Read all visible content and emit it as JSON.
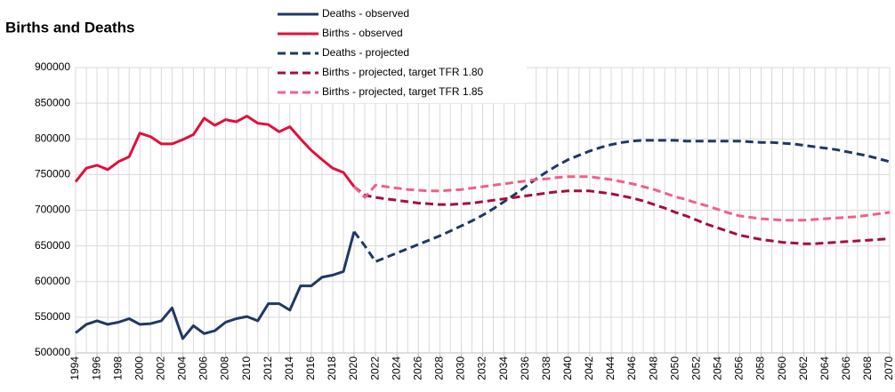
{
  "chart_data": {
    "type": "line",
    "title": "Births and Deaths",
    "x": [
      1994,
      1995,
      1996,
      1997,
      1998,
      1999,
      2000,
      2001,
      2002,
      2003,
      2004,
      2005,
      2006,
      2007,
      2008,
      2009,
      2010,
      2011,
      2012,
      2013,
      2014,
      2015,
      2016,
      2017,
      2018,
      2019,
      2020,
      2021,
      2022,
      2023,
      2024,
      2025,
      2026,
      2027,
      2028,
      2029,
      2030,
      2031,
      2032,
      2033,
      2034,
      2035,
      2036,
      2037,
      2038,
      2039,
      2040,
      2041,
      2042,
      2043,
      2044,
      2045,
      2046,
      2047,
      2048,
      2049,
      2050,
      2051,
      2052,
      2053,
      2054,
      2055,
      2056,
      2057,
      2058,
      2059,
      2060,
      2061,
      2062,
      2063,
      2064,
      2065,
      2066,
      2067,
      2068,
      2069,
      2070
    ],
    "xlim": [
      1994,
      2070
    ],
    "xticks": [
      1994,
      1996,
      1998,
      2000,
      2002,
      2004,
      2006,
      2008,
      2010,
      2012,
      2014,
      2016,
      2018,
      2020,
      2022,
      2024,
      2026,
      2028,
      2030,
      2032,
      2034,
      2036,
      2038,
      2040,
      2042,
      2044,
      2046,
      2048,
      2050,
      2052,
      2054,
      2056,
      2058,
      2060,
      2062,
      2064,
      2066,
      2068,
      2070
    ],
    "ylim": [
      500000,
      900000
    ],
    "yticks": [
      500000,
      550000,
      600000,
      650000,
      700000,
      750000,
      800000,
      850000,
      900000
    ],
    "grid": true,
    "series": [
      {
        "name": "Deaths - observed",
        "color": "#203864",
        "style": "solid",
        "values": [
          528000,
          540000,
          545000,
          540000,
          543000,
          548000,
          540000,
          541000,
          545000,
          563000,
          520000,
          538000,
          527000,
          531000,
          543000,
          548000,
          551000,
          545000,
          569000,
          569000,
          560000,
          594000,
          594000,
          606000,
          609000,
          614000,
          670000,
          null,
          null,
          null,
          null,
          null,
          null,
          null,
          null,
          null,
          null,
          null,
          null,
          null,
          null,
          null,
          null,
          null,
          null,
          null,
          null,
          null,
          null,
          null,
          null,
          null,
          null,
          null,
          null,
          null,
          null,
          null,
          null,
          null,
          null,
          null,
          null,
          null,
          null,
          null,
          null,
          null,
          null,
          null,
          null,
          null,
          null,
          null,
          null,
          null,
          null
        ]
      },
      {
        "name": "Births - observed",
        "color": "#e0103c",
        "style": "solid",
        "values": [
          740000,
          759000,
          763000,
          757000,
          768000,
          775000,
          808000,
          803000,
          793000,
          793000,
          799000,
          806000,
          829000,
          819000,
          827000,
          824000,
          832000,
          822000,
          820000,
          810000,
          817000,
          800000,
          784000,
          771000,
          759000,
          753000,
          733000,
          null,
          null,
          null,
          null,
          null,
          null,
          null,
          null,
          null,
          null,
          null,
          null,
          null,
          null,
          null,
          null,
          null,
          null,
          null,
          null,
          null,
          null,
          null,
          null,
          null,
          null,
          null,
          null,
          null,
          null,
          null,
          null,
          null,
          null,
          null,
          null,
          null,
          null,
          null,
          null,
          null,
          null,
          null,
          null,
          null,
          null,
          null,
          null,
          null,
          null
        ]
      },
      {
        "name": "Deaths - projected",
        "color": "#203864",
        "style": "dashed",
        "values": [
          null,
          null,
          null,
          null,
          null,
          null,
          null,
          null,
          null,
          null,
          null,
          null,
          null,
          null,
          null,
          null,
          null,
          null,
          null,
          null,
          null,
          null,
          null,
          null,
          null,
          null,
          670000,
          650000,
          628000,
          634000,
          640000,
          646000,
          652000,
          658000,
          664000,
          671000,
          678000,
          685000,
          693000,
          702000,
          712000,
          722000,
          733000,
          744000,
          754000,
          763000,
          771000,
          777000,
          783000,
          788000,
          792000,
          795000,
          797000,
          798000,
          798000,
          798000,
          798000,
          797000,
          797000,
          797000,
          797000,
          797000,
          797000,
          796000,
          795000,
          795000,
          794000,
          793000,
          791000,
          789000,
          787000,
          785000,
          782000,
          779000,
          776000,
          772000,
          768000
        ]
      },
      {
        "name": "Births - projected, target TFR 1.80",
        "color": "#a50f3c",
        "style": "dashed",
        "values": [
          null,
          null,
          null,
          null,
          null,
          null,
          null,
          null,
          null,
          null,
          null,
          null,
          null,
          null,
          null,
          null,
          null,
          null,
          null,
          null,
          null,
          null,
          null,
          null,
          null,
          null,
          733000,
          721000,
          718000,
          716000,
          714000,
          712000,
          710000,
          709000,
          708000,
          708000,
          709000,
          710000,
          712000,
          714000,
          716000,
          718000,
          720000,
          722000,
          724000,
          726000,
          727000,
          727000,
          727000,
          725000,
          723000,
          720000,
          717000,
          713000,
          708000,
          703000,
          697000,
          692000,
          686000,
          680000,
          675000,
          670000,
          665000,
          662000,
          659000,
          657000,
          655000,
          654000,
          653000,
          653000,
          654000,
          655000,
          656000,
          657000,
          658000,
          659000,
          660000
        ]
      },
      {
        "name": "Births - projected, target TFR 1.85",
        "color": "#f06088",
        "style": "dashed",
        "values": [
          null,
          null,
          null,
          null,
          null,
          null,
          null,
          null,
          null,
          null,
          null,
          null,
          null,
          null,
          null,
          null,
          null,
          null,
          null,
          null,
          null,
          null,
          null,
          null,
          null,
          null,
          733000,
          718000,
          735000,
          733000,
          731000,
          729000,
          728000,
          727000,
          727000,
          728000,
          729000,
          731000,
          733000,
          735000,
          737000,
          739000,
          741000,
          743000,
          744000,
          746000,
          747000,
          747000,
          747000,
          745000,
          743000,
          740000,
          737000,
          733000,
          729000,
          724000,
          719000,
          715000,
          710000,
          706000,
          701000,
          696000,
          692000,
          690000,
          688000,
          687000,
          686000,
          686000,
          686000,
          687000,
          688000,
          689000,
          690000,
          691000,
          693000,
          695000,
          697000
        ]
      }
    ]
  }
}
